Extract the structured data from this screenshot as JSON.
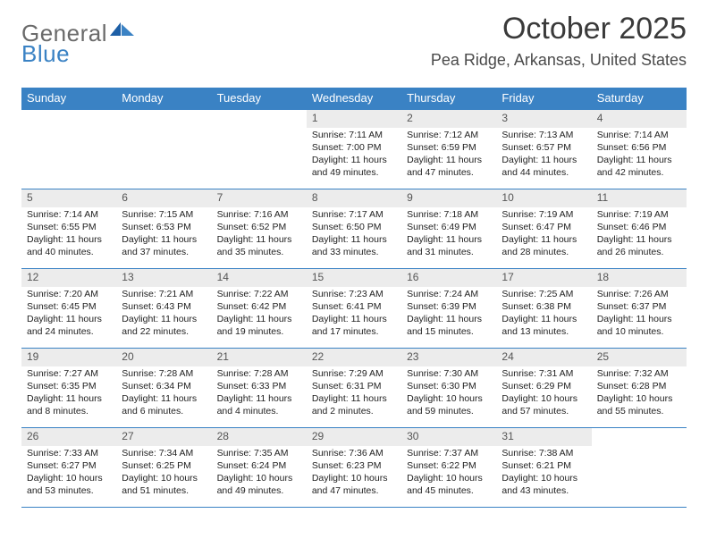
{
  "logo": {
    "part1": "General",
    "part2": "Blue"
  },
  "title": "October 2025",
  "location": "Pea Ridge, Arkansas, United States",
  "accent_color": "#3a82c4",
  "daynum_bg": "#ececec",
  "text_color": "#222222",
  "weekday_labels": [
    "Sunday",
    "Monday",
    "Tuesday",
    "Wednesday",
    "Thursday",
    "Friday",
    "Saturday"
  ],
  "weeks": [
    [
      null,
      null,
      null,
      {
        "n": "1",
        "sunrise": "7:11 AM",
        "sunset": "7:00 PM",
        "day_h": "11",
        "day_m": "49"
      },
      {
        "n": "2",
        "sunrise": "7:12 AM",
        "sunset": "6:59 PM",
        "day_h": "11",
        "day_m": "47"
      },
      {
        "n": "3",
        "sunrise": "7:13 AM",
        "sunset": "6:57 PM",
        "day_h": "11",
        "day_m": "44"
      },
      {
        "n": "4",
        "sunrise": "7:14 AM",
        "sunset": "6:56 PM",
        "day_h": "11",
        "day_m": "42"
      }
    ],
    [
      {
        "n": "5",
        "sunrise": "7:14 AM",
        "sunset": "6:55 PM",
        "day_h": "11",
        "day_m": "40"
      },
      {
        "n": "6",
        "sunrise": "7:15 AM",
        "sunset": "6:53 PM",
        "day_h": "11",
        "day_m": "37"
      },
      {
        "n": "7",
        "sunrise": "7:16 AM",
        "sunset": "6:52 PM",
        "day_h": "11",
        "day_m": "35"
      },
      {
        "n": "8",
        "sunrise": "7:17 AM",
        "sunset": "6:50 PM",
        "day_h": "11",
        "day_m": "33"
      },
      {
        "n": "9",
        "sunrise": "7:18 AM",
        "sunset": "6:49 PM",
        "day_h": "11",
        "day_m": "31"
      },
      {
        "n": "10",
        "sunrise": "7:19 AM",
        "sunset": "6:47 PM",
        "day_h": "11",
        "day_m": "28"
      },
      {
        "n": "11",
        "sunrise": "7:19 AM",
        "sunset": "6:46 PM",
        "day_h": "11",
        "day_m": "26"
      }
    ],
    [
      {
        "n": "12",
        "sunrise": "7:20 AM",
        "sunset": "6:45 PM",
        "day_h": "11",
        "day_m": "24"
      },
      {
        "n": "13",
        "sunrise": "7:21 AM",
        "sunset": "6:43 PM",
        "day_h": "11",
        "day_m": "22"
      },
      {
        "n": "14",
        "sunrise": "7:22 AM",
        "sunset": "6:42 PM",
        "day_h": "11",
        "day_m": "19"
      },
      {
        "n": "15",
        "sunrise": "7:23 AM",
        "sunset": "6:41 PM",
        "day_h": "11",
        "day_m": "17"
      },
      {
        "n": "16",
        "sunrise": "7:24 AM",
        "sunset": "6:39 PM",
        "day_h": "11",
        "day_m": "15"
      },
      {
        "n": "17",
        "sunrise": "7:25 AM",
        "sunset": "6:38 PM",
        "day_h": "11",
        "day_m": "13"
      },
      {
        "n": "18",
        "sunrise": "7:26 AM",
        "sunset": "6:37 PM",
        "day_h": "11",
        "day_m": "10"
      }
    ],
    [
      {
        "n": "19",
        "sunrise": "7:27 AM",
        "sunset": "6:35 PM",
        "day_h": "11",
        "day_m": "8"
      },
      {
        "n": "20",
        "sunrise": "7:28 AM",
        "sunset": "6:34 PM",
        "day_h": "11",
        "day_m": "6"
      },
      {
        "n": "21",
        "sunrise": "7:28 AM",
        "sunset": "6:33 PM",
        "day_h": "11",
        "day_m": "4"
      },
      {
        "n": "22",
        "sunrise": "7:29 AM",
        "sunset": "6:31 PM",
        "day_h": "11",
        "day_m": "2"
      },
      {
        "n": "23",
        "sunrise": "7:30 AM",
        "sunset": "6:30 PM",
        "day_h": "10",
        "day_m": "59"
      },
      {
        "n": "24",
        "sunrise": "7:31 AM",
        "sunset": "6:29 PM",
        "day_h": "10",
        "day_m": "57"
      },
      {
        "n": "25",
        "sunrise": "7:32 AM",
        "sunset": "6:28 PM",
        "day_h": "10",
        "day_m": "55"
      }
    ],
    [
      {
        "n": "26",
        "sunrise": "7:33 AM",
        "sunset": "6:27 PM",
        "day_h": "10",
        "day_m": "53"
      },
      {
        "n": "27",
        "sunrise": "7:34 AM",
        "sunset": "6:25 PM",
        "day_h": "10",
        "day_m": "51"
      },
      {
        "n": "28",
        "sunrise": "7:35 AM",
        "sunset": "6:24 PM",
        "day_h": "10",
        "day_m": "49"
      },
      {
        "n": "29",
        "sunrise": "7:36 AM",
        "sunset": "6:23 PM",
        "day_h": "10",
        "day_m": "47"
      },
      {
        "n": "30",
        "sunrise": "7:37 AM",
        "sunset": "6:22 PM",
        "day_h": "10",
        "day_m": "45"
      },
      {
        "n": "31",
        "sunrise": "7:38 AM",
        "sunset": "6:21 PM",
        "day_h": "10",
        "day_m": "43"
      },
      null
    ]
  ],
  "label_sunrise": "Sunrise:",
  "label_sunset": "Sunset:",
  "label_daylight_prefix": "Daylight:",
  "label_hours": "hours",
  "label_and": "and",
  "label_minutes": "minutes."
}
